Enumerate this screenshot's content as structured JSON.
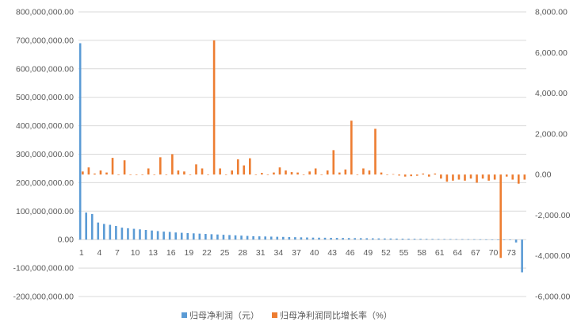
{
  "chart_data": {
    "type": "bar",
    "categories": [
      "1",
      "2",
      "3",
      "4",
      "5",
      "6",
      "7",
      "8",
      "9",
      "10",
      "11",
      "12",
      "13",
      "14",
      "15",
      "16",
      "17",
      "18",
      "19",
      "20",
      "21",
      "22",
      "23",
      "24",
      "25",
      "26",
      "27",
      "28",
      "29",
      "30",
      "31",
      "32",
      "33",
      "34",
      "35",
      "36",
      "37",
      "38",
      "39",
      "40",
      "41",
      "42",
      "43",
      "44",
      "45",
      "46",
      "47",
      "48",
      "49",
      "50",
      "51",
      "52",
      "53",
      "54",
      "55",
      "56",
      "57",
      "58",
      "59",
      "60",
      "61",
      "62",
      "63",
      "64",
      "65",
      "66",
      "67",
      "68",
      "69",
      "70",
      "71",
      "72",
      "73",
      "74",
      "75"
    ],
    "x_tick_labels": [
      "1",
      "4",
      "7",
      "10",
      "13",
      "16",
      "19",
      "22",
      "25",
      "28",
      "31",
      "34",
      "37",
      "40",
      "43",
      "46",
      "49",
      "52",
      "55",
      "58",
      "61",
      "64",
      "67",
      "70",
      "73"
    ],
    "series": [
      {
        "name": "归母净利润（元）",
        "axis": "left",
        "color": "#5b9bd5",
        "values": [
          690000000,
          95000000,
          90000000,
          60000000,
          55000000,
          52000000,
          48000000,
          42000000,
          40000000,
          38000000,
          36000000,
          34000000,
          32000000,
          30000000,
          28000000,
          27000000,
          25000000,
          24000000,
          23000000,
          22000000,
          21000000,
          20000000,
          19000000,
          18000000,
          17000000,
          16000000,
          15000000,
          14000000,
          13000000,
          12000000,
          11500000,
          11000000,
          10500000,
          10000000,
          9500000,
          9000000,
          8500000,
          8000000,
          7500000,
          7000000,
          6800000,
          6500000,
          6200000,
          6000000,
          5800000,
          5500000,
          5200000,
          5000000,
          4800000,
          4500000,
          4200000,
          4000000,
          3800000,
          3500000,
          3200000,
          3000000,
          2800000,
          2600000,
          2400000,
          2200000,
          2000000,
          1900000,
          1800000,
          1600000,
          1500000,
          1400000,
          1200000,
          1000000,
          800000,
          600000,
          400000,
          200000,
          100000,
          -10000000,
          -115000000
        ]
      },
      {
        "name": "归母净利润同比增长率（%）",
        "axis": "right",
        "color": "#ed7d31",
        "values": [
          150,
          350,
          50,
          200,
          100,
          820,
          0,
          700,
          0,
          0,
          0,
          300,
          0,
          850,
          0,
          1000,
          200,
          150,
          0,
          500,
          300,
          0,
          6600,
          300,
          0,
          200,
          750,
          450,
          800,
          0,
          80,
          0,
          100,
          350,
          200,
          120,
          100,
          0,
          150,
          300,
          0,
          200,
          1200,
          100,
          250,
          2650,
          0,
          300,
          200,
          2250,
          100,
          0,
          20,
          -50,
          -100,
          -80,
          -60,
          50,
          -100,
          50,
          -200,
          -350,
          -300,
          -250,
          -300,
          -200,
          -400,
          -200,
          -300,
          -250,
          -4100,
          -100,
          -250,
          -450,
          -250
        ]
      }
    ],
    "y_left": {
      "min": -200000000,
      "max": 800000000,
      "step": 100000000,
      "tick_labels": [
        "-200,000,000.00",
        "-100,000,000.00",
        "0.00",
        "100,000,000.00",
        "200,000,000.00",
        "300,000,000.00",
        "400,000,000.00",
        "500,000,000.00",
        "600,000,000.00",
        "700,000,000.00",
        "800,000,000.00"
      ]
    },
    "y_right": {
      "min": -6000,
      "max": 8000,
      "step": 2000,
      "tick_labels": [
        "-6,000.00",
        "-4,000.00",
        "-2,000.00",
        "0.00",
        "2,000.00",
        "4,000.00",
        "6,000.00",
        "8,000.00"
      ]
    },
    "grid": true,
    "legend_position": "bottom"
  }
}
